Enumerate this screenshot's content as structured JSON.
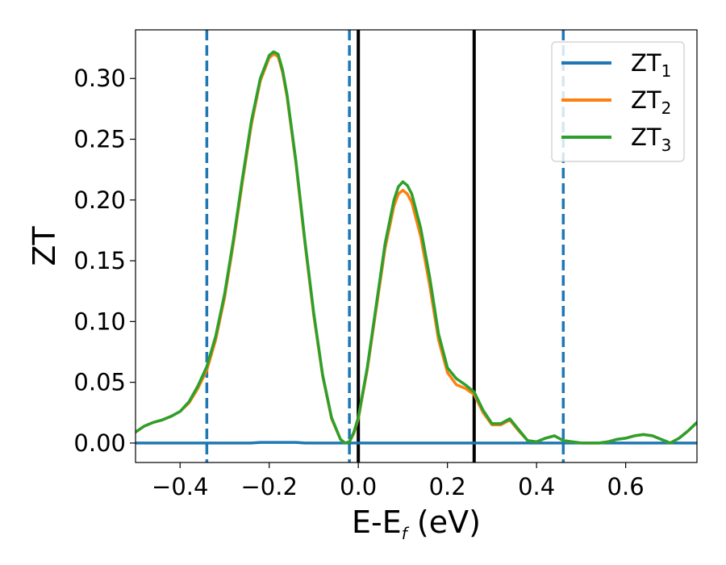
{
  "chart_data": {
    "type": "line",
    "title": "",
    "xlabel": "E-E",
    "xlabel_sub": "f",
    "xlabel_unit": " (eV)",
    "ylabel": "ZT",
    "xlim": [
      -0.5,
      0.76
    ],
    "ylim": [
      -0.016,
      0.34
    ],
    "xticks": [
      -0.4,
      -0.2,
      0.0,
      0.2,
      0.4,
      0.6
    ],
    "xtick_labels": [
      "−0.4",
      "−0.2",
      "0.0",
      "0.2",
      "0.4",
      "0.6"
    ],
    "yticks": [
      0.0,
      0.05,
      0.1,
      0.15,
      0.2,
      0.25,
      0.3
    ],
    "ytick_labels": [
      "0.00",
      "0.05",
      "0.10",
      "0.15",
      "0.20",
      "0.25",
      "0.30"
    ],
    "grid": false,
    "legend": "top-right",
    "x": [
      -0.5,
      -0.48,
      -0.46,
      -0.44,
      -0.42,
      -0.4,
      -0.38,
      -0.36,
      -0.34,
      -0.32,
      -0.3,
      -0.28,
      -0.26,
      -0.24,
      -0.22,
      -0.2,
      -0.19,
      -0.18,
      -0.17,
      -0.16,
      -0.14,
      -0.12,
      -0.1,
      -0.08,
      -0.06,
      -0.04,
      -0.03,
      -0.02,
      -0.01,
      0.0,
      0.02,
      0.04,
      0.06,
      0.08,
      0.09,
      0.1,
      0.11,
      0.12,
      0.14,
      0.16,
      0.18,
      0.2,
      0.22,
      0.24,
      0.26,
      0.28,
      0.3,
      0.32,
      0.34,
      0.36,
      0.38,
      0.4,
      0.42,
      0.44,
      0.46,
      0.48,
      0.5,
      0.52,
      0.54,
      0.56,
      0.58,
      0.6,
      0.62,
      0.64,
      0.66,
      0.68,
      0.7,
      0.72,
      0.74,
      0.76
    ],
    "series": [
      {
        "name": "ZT",
        "sub": "1",
        "color": "#1f77b4",
        "values": [
          0.0,
          0.0,
          0.0,
          0.0,
          0.0,
          0.0,
          0.0,
          0.0,
          0.0,
          0.0,
          0.0,
          0.0,
          0.0,
          0.0,
          0.0005,
          0.0005,
          0.0005,
          0.0005,
          0.0005,
          0.0005,
          0.0005,
          0.0,
          0.0,
          0.0,
          0.0,
          0.0,
          0.0,
          0.0,
          0.0,
          0.0,
          0.0,
          0.0,
          0.0,
          0.0,
          0.0,
          0.0,
          0.0,
          0.0,
          0.0,
          0.0,
          0.0,
          0.0,
          0.0,
          0.0,
          0.0,
          0.0,
          0.0,
          0.0,
          0.0,
          0.0,
          0.0,
          0.0,
          0.0,
          0.0,
          0.0,
          0.0,
          0.0,
          0.0,
          0.0,
          0.0,
          0.0,
          0.0,
          0.0,
          0.0,
          0.0,
          0.0,
          0.0,
          0.0,
          0.0,
          0.0
        ]
      },
      {
        "name": "ZT",
        "sub": "2",
        "color": "#ff7f0e",
        "values": [
          0.009,
          0.014,
          0.017,
          0.019,
          0.022,
          0.026,
          0.033,
          0.045,
          0.06,
          0.085,
          0.12,
          0.165,
          0.215,
          0.262,
          0.298,
          0.317,
          0.32,
          0.318,
          0.305,
          0.285,
          0.23,
          0.165,
          0.105,
          0.055,
          0.02,
          0.003,
          0.0,
          0.001,
          0.008,
          0.02,
          0.06,
          0.11,
          0.16,
          0.195,
          0.205,
          0.208,
          0.205,
          0.198,
          0.17,
          0.13,
          0.085,
          0.058,
          0.048,
          0.045,
          0.04,
          0.025,
          0.015,
          0.015,
          0.019,
          0.01,
          0.002,
          0.001,
          0.004,
          0.006,
          0.002,
          0.001,
          0.0,
          0.0,
          0.0,
          0.001,
          0.003,
          0.004,
          0.006,
          0.007,
          0.006,
          0.003,
          0.0,
          0.004,
          0.01,
          0.017
        ]
      },
      {
        "name": "ZT",
        "sub": "3",
        "color": "#2ca02c",
        "values": [
          0.009,
          0.014,
          0.017,
          0.019,
          0.022,
          0.026,
          0.034,
          0.047,
          0.063,
          0.088,
          0.123,
          0.168,
          0.218,
          0.265,
          0.3,
          0.319,
          0.322,
          0.32,
          0.307,
          0.287,
          0.232,
          0.167,
          0.107,
          0.056,
          0.021,
          0.003,
          0.0,
          0.001,
          0.009,
          0.021,
          0.062,
          0.113,
          0.164,
          0.2,
          0.211,
          0.215,
          0.212,
          0.205,
          0.177,
          0.137,
          0.09,
          0.062,
          0.053,
          0.048,
          0.042,
          0.027,
          0.016,
          0.016,
          0.02,
          0.011,
          0.002,
          0.001,
          0.004,
          0.006,
          0.002,
          0.001,
          0.0,
          0.0,
          0.0,
          0.001,
          0.003,
          0.004,
          0.006,
          0.007,
          0.006,
          0.003,
          0.0,
          0.004,
          0.01,
          0.017
        ]
      }
    ],
    "vlines": [
      {
        "x": -0.34,
        "style": "dashed",
        "color": "#1f77b4"
      },
      {
        "x": -0.02,
        "style": "dashed",
        "color": "#1f77b4"
      },
      {
        "x": 0.46,
        "style": "dashed",
        "color": "#1f77b4"
      },
      {
        "x": 0.0,
        "style": "solid",
        "color": "#000000"
      },
      {
        "x": 0.26,
        "style": "solid",
        "color": "#000000"
      }
    ]
  }
}
